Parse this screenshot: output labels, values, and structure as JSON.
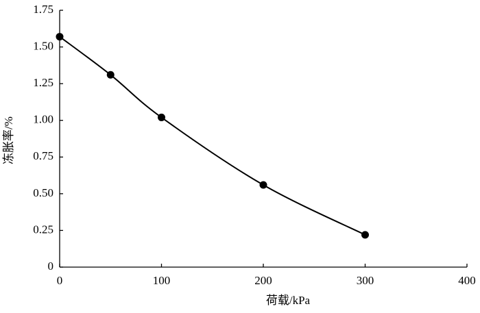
{
  "chart_data": {
    "type": "scatter",
    "x_label": "荷载/kPa",
    "y_label": "冻胀率/%",
    "series": [
      {
        "x": [
          0,
          50,
          100,
          200,
          300
        ],
        "values": [
          1.57,
          1.31,
          1.02,
          0.56,
          0.22
        ],
        "color": "#000000"
      }
    ],
    "fit_line": true,
    "xlim": [
      0,
      400
    ],
    "xticks": [
      0,
      100,
      200,
      300,
      400
    ],
    "ylim": [
      0,
      1.75
    ],
    "yticks": [
      0,
      0.25,
      {
        "value": 0.5,
        "label": "0.50"
      },
      0.75,
      {
        "value": 1,
        "label": "1.00"
      },
      1.25,
      {
        "value": 1.5,
        "label": "1.50"
      },
      1.75
    ],
    "grid": false
  }
}
